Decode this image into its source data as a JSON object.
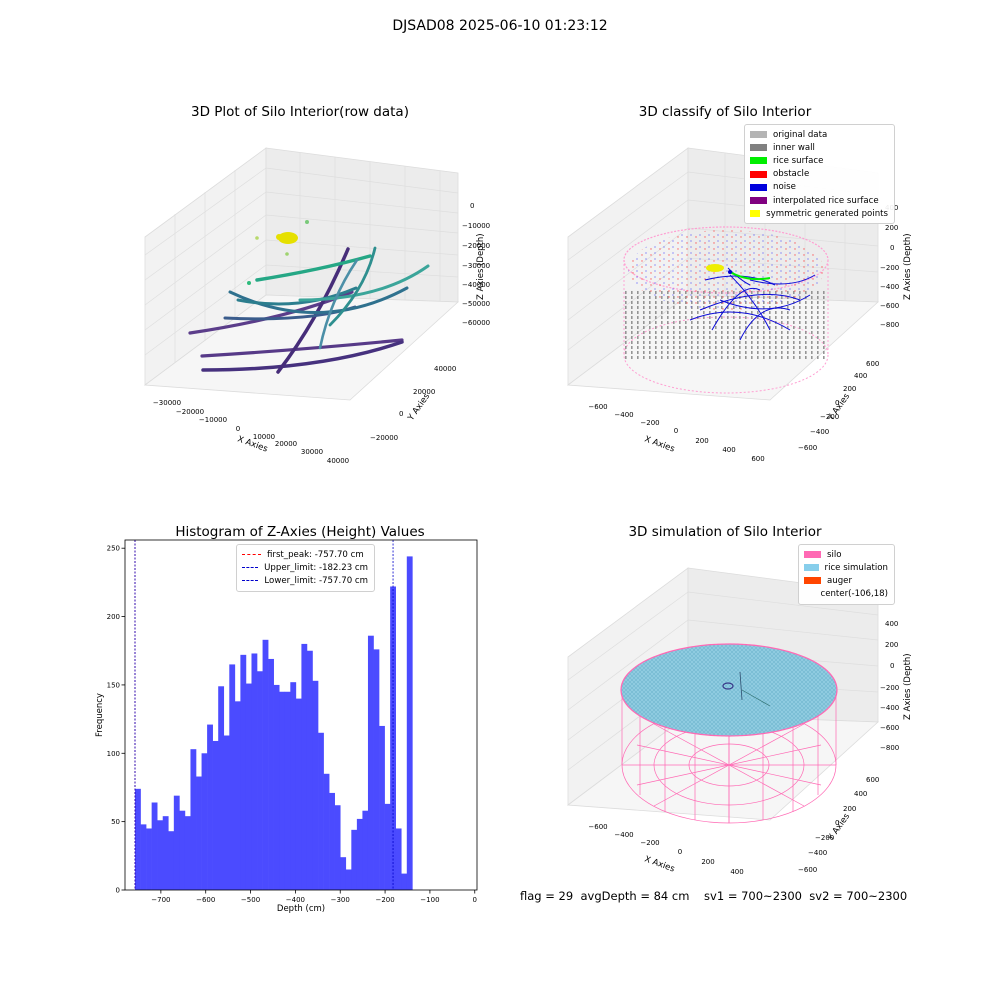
{
  "suptitle": "DJSAD08 2025-06-10 01:23:12",
  "panels": {
    "raw": {
      "title": "3D Plot of Silo Interior(row data)",
      "xlabel": "X Axies",
      "ylabel": "Y Axies",
      "zlabel": "Z Axies (Depth)",
      "xticks": [
        "−30000",
        "−20000",
        "−10000",
        "0",
        "10000",
        "20000",
        "30000",
        "40000"
      ],
      "yticks": [
        "40000",
        "20000",
        "0",
        "−20000"
      ],
      "zticks": [
        "0",
        "−10000",
        "−20000",
        "−30000",
        "−40000",
        "−50000",
        "−60000"
      ]
    },
    "classify": {
      "title": "3D classify of Silo Interior",
      "xlabel": "X Axies",
      "ylabel": "Y Axies",
      "zlabel": "Z Axies (Depth)",
      "xticks": [
        "−600",
        "−400",
        "−200",
        "0",
        "200",
        "400",
        "600"
      ],
      "yticks": [
        "600",
        "400",
        "200",
        "0",
        "−200",
        "−400",
        "−600"
      ],
      "zticks": [
        "400",
        "200",
        "0",
        "−200",
        "−400",
        "−600",
        "−800"
      ],
      "legend": [
        {
          "label": "original data",
          "color": "#b4b4b4"
        },
        {
          "label": "inner wall",
          "color": "#808080"
        },
        {
          "label": "rice surface",
          "color": "#00ee00"
        },
        {
          "label": "obstacle",
          "color": "#ff0000"
        },
        {
          "label": "noise",
          "color": "#0000dd"
        },
        {
          "label": "interpolated rice surface",
          "color": "#800080"
        },
        {
          "label": "symmetric generated points",
          "color": "#ffff00"
        }
      ]
    },
    "simulation": {
      "title": "3D simulation of Silo Interior",
      "xlabel": "X Axies",
      "ylabel": "Y Axies",
      "zlabel": "Z Axies (Depth)",
      "xticks": [
        "−600",
        "−400",
        "−200",
        "0",
        "200",
        "400"
      ],
      "yticks": [
        "600",
        "400",
        "200",
        "0",
        "−200",
        "−400",
        "−600"
      ],
      "zticks": [
        "400",
        "200",
        "0",
        "−200",
        "−400",
        "−600",
        "−800"
      ],
      "legend": [
        {
          "label": "silo",
          "color": "#ff69b4"
        },
        {
          "label": "rice simulation",
          "color": "#87ceeb"
        },
        {
          "label": "auger",
          "color": "#ff4500"
        },
        {
          "label": "center(-106,18)",
          "color": ""
        }
      ]
    }
  },
  "status": "flag = 29  avgDepth = 84 cm    sv1 = 700~2300  sv2 = 700~2300",
  "chart_data": {
    "type": "bar",
    "title": "Histogram of Z-Axies (Height) Values",
    "xlabel": "Depth (cm)",
    "ylabel": "Frequency",
    "bin_start": -757.7,
    "bin_width": 12.37,
    "values": [
      74,
      48,
      45,
      64,
      51,
      54,
      43,
      69,
      58,
      54,
      103,
      83,
      100,
      121,
      109,
      149,
      113,
      165,
      138,
      172,
      151,
      173,
      160,
      183,
      169,
      150,
      145,
      145,
      152,
      140,
      180,
      175,
      153,
      115,
      85,
      71,
      62,
      24,
      15,
      44,
      52,
      58,
      186,
      176,
      120,
      63,
      222,
      45,
      12,
      244
    ],
    "xlim": [
      -780,
      5
    ],
    "ylim": [
      0,
      256
    ],
    "xticks": [
      -700,
      -600,
      -500,
      -400,
      -300,
      -200,
      -100,
      0
    ],
    "yticks": [
      0,
      50,
      100,
      150,
      200,
      250
    ],
    "bar_color": "#4b4bff",
    "lines": [
      {
        "name": "first_peak: -757.70 cm",
        "x": -757.7,
        "color": "#ff0000"
      },
      {
        "name": "Upper_limit: -182.23 cm",
        "x": -182.23,
        "color": "#0000cc"
      },
      {
        "name": "Lower_limit: -757.70 cm",
        "x": -757.7,
        "color": "#0000cc"
      }
    ]
  }
}
